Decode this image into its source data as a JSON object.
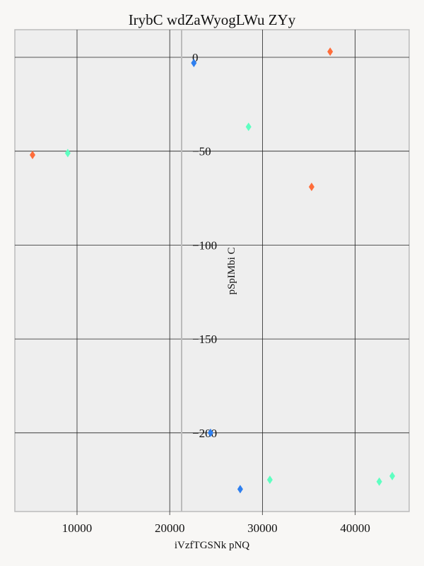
{
  "chart_data": {
    "type": "scatter",
    "title": "IrybC wdZaWyogLWu ZYy",
    "xlabel": "iVzfTGSNk pNQ",
    "ylabel": "pSpIMbi C",
    "xlim": [
      3000,
      46000
    ],
    "ylim": [
      -242,
      15
    ],
    "x_ticks": [
      10000,
      20000,
      30000,
      40000
    ],
    "y_ticks": [
      0,
      -50,
      -100,
      -150,
      -200
    ],
    "y_tick_labels": [
      "0",
      "−50",
      "−100",
      "−150",
      "−200"
    ],
    "grid": true,
    "marker": "diamond",
    "series": [
      {
        "color": "#ff6d3a",
        "points": [
          {
            "x": 5200,
            "y": -52
          },
          {
            "x": 37300,
            "y": 3
          },
          {
            "x": 35300,
            "y": -69
          }
        ]
      },
      {
        "color": "#5effc1",
        "points": [
          {
            "x": 9000,
            "y": -51
          },
          {
            "x": 28500,
            "y": -37
          },
          {
            "x": 30800,
            "y": -225
          },
          {
            "x": 42600,
            "y": -226
          },
          {
            "x": 44000,
            "y": -223
          }
        ]
      },
      {
        "color": "#2e7fef",
        "points": [
          {
            "x": 22600,
            "y": -3
          },
          {
            "x": 24400,
            "y": -200
          },
          {
            "x": 27600,
            "y": -230
          }
        ]
      }
    ],
    "colors": {
      "plot_background": "#eeeeee",
      "grid": "#222222",
      "frame": "#bbbbbb",
      "zero_line": "#bbbbbb"
    }
  }
}
